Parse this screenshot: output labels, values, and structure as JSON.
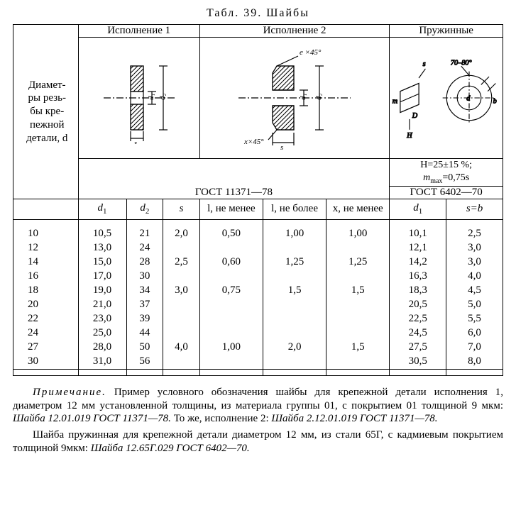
{
  "title": "Табл. 39. Шайбы",
  "headers": {
    "exec1": "Исполнение 1",
    "exec2": "Исполнение 2",
    "spring": "Пружинные",
    "leftHeader": "Диамет-\nры резь-\nбы кре-\nпежной\nдетали, d",
    "gost1": "ГОСТ 11371—78",
    "gost2": "ГОСТ 6402—70",
    "hnote1": "H=25±15 %;",
    "hnote2_prefix": "m",
    "hnote2_sub": "max",
    "hnote2_suffix": "=0,75s",
    "d1": "d",
    "d1sub": "1",
    "d2": "d",
    "d2sub": "2",
    "s": "s",
    "lmin": "l, не менее",
    "lmax": "l, не более",
    "xmin": "x, не менее",
    "sb": "s=b"
  },
  "rows": [
    {
      "d": "10",
      "d1": "10,5",
      "d2": "21",
      "s": "2,0",
      "lmin": "0,50",
      "lmax": "1,00",
      "xmin": "1,00",
      "sd1": "10,1",
      "sb": "2,5"
    },
    {
      "d": "12",
      "d1": "13,0",
      "d2": "24",
      "s": "",
      "lmin": "",
      "lmax": "",
      "xmin": "",
      "sd1": "12,1",
      "sb": "3,0"
    },
    {
      "d": "14",
      "d1": "15,0",
      "d2": "28",
      "s": "2,5",
      "lmin": "0,60",
      "lmax": "1,25",
      "xmin": "1,25",
      "sd1": "14,2",
      "sb": "3,0"
    },
    {
      "d": "16",
      "d1": "17,0",
      "d2": "30",
      "s": "",
      "lmin": "",
      "lmax": "",
      "xmin": "",
      "sd1": "16,3",
      "sb": "4,0"
    },
    {
      "d": "18",
      "d1": "19,0",
      "d2": "34",
      "s": "3,0",
      "lmin": "0,75",
      "lmax": "1,5",
      "xmin": "1,5",
      "sd1": "18,3",
      "sb": "4,5"
    },
    {
      "d": "20",
      "d1": "21,0",
      "d2": "37",
      "s": "",
      "lmin": "",
      "lmax": "",
      "xmin": "",
      "sd1": "20,5",
      "sb": "5,0"
    },
    {
      "d": "22",
      "d1": "23,0",
      "d2": "39",
      "s": "",
      "lmin": "",
      "lmax": "",
      "xmin": "",
      "sd1": "22,5",
      "sb": "5,5"
    },
    {
      "d": "24",
      "d1": "25,0",
      "d2": "44",
      "s": "",
      "lmin": "",
      "lmax": "",
      "xmin": "",
      "sd1": "24,5",
      "sb": "6,0"
    },
    {
      "d": "27",
      "d1": "28,0",
      "d2": "50",
      "s": "4,0",
      "lmin": "1,00",
      "lmax": "2,0",
      "xmin": "1,5",
      "sd1": "27,5",
      "sb": "7,0"
    },
    {
      "d": "30",
      "d1": "31,0",
      "d2": "56",
      "s": "",
      "lmin": "",
      "lmax": "",
      "xmin": "",
      "sd1": "30,5",
      "sb": "8,0"
    }
  ],
  "footer": {
    "p1_lead": "Примечание.",
    "p1_body_a": " Пример условного обозначения шайбы для крепежной детали исполнения 1, диаметром 12 мм установленной толщины, из материала группы 01, с покрытием 01 толщиной 9 мкм: ",
    "p1_ital_a": "Шайба 12.01.019 ГОСТ 11371—78.",
    "p1_body_b": " То же, исполнение 2: ",
    "p1_ital_b": "Шайба 2.12.01.019 ГОСТ 11371—78.",
    "p2_body": "Шайба пружинная для крепежной детали диаметром 12 мм, из стали 65Г, с кадмиевым покрытием толщиной 9мкм: ",
    "p2_ital": "Шайба 12.65Г.029 ГОСТ 6402—70."
  },
  "colWidths": [
    "78",
    "58",
    "44",
    "44",
    "76",
    "76",
    "76",
    "68",
    "68"
  ],
  "drawings": {
    "exec1_labels": {
      "d1": "d₁",
      "d2": "d₂",
      "s": "s"
    },
    "exec2_labels": {
      "d1": "d₁",
      "d2": "d₂",
      "s": "s",
      "chamferTop": "e ×45°",
      "chamferBot": "x×45°"
    },
    "spring_labels": {
      "H": "H",
      "D": "D",
      "d": "d",
      "s": "s",
      "b": "b",
      "m": "m",
      "angle": "70–80°"
    }
  },
  "style": {
    "stroke": "#000000",
    "fill": "#ffffff",
    "fontSize": 11,
    "hatchGap": 5
  }
}
